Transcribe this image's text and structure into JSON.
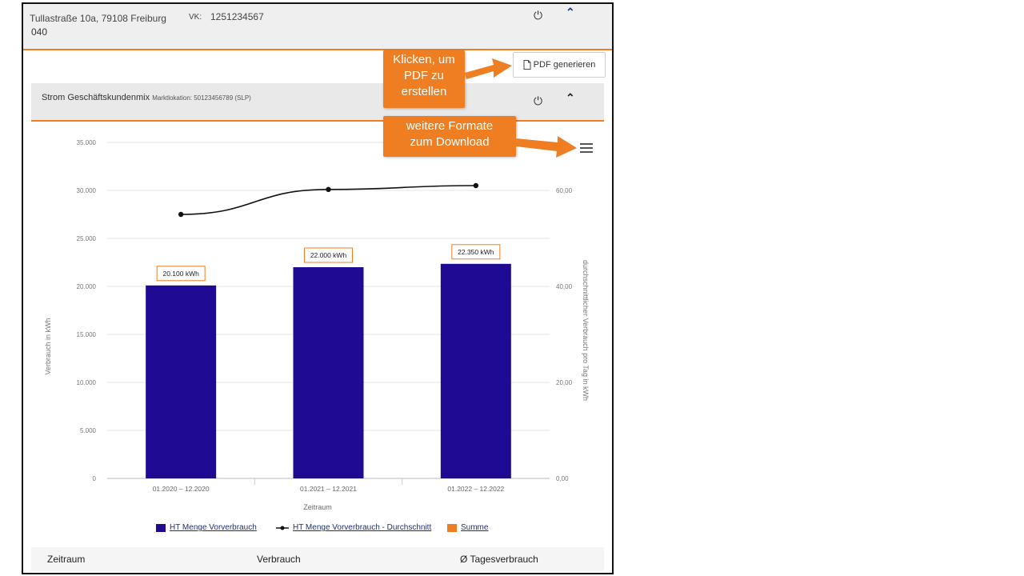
{
  "header": {
    "address": "Tullastraße 10a, 79108 Freiburg",
    "vk_label": "VK:",
    "vk_value": "1251234567",
    "code": "040"
  },
  "pdf_button": {
    "label": "PDF generieren",
    "icon": "document-icon"
  },
  "product": {
    "name": "Strom Geschäftskundenmix",
    "detail": "Marktlokation: 50123456789 (SLP)"
  },
  "callouts": {
    "pdf_lines": [
      "Klicken, um",
      "PDF zu",
      "erstellen"
    ],
    "formats_lines": [
      "weitere Formate",
      "zum Download"
    ]
  },
  "colors": {
    "accent": "#ef7d22",
    "bar": "#1f0a93",
    "line": "#111111",
    "link": "#1d2e7a"
  },
  "chart_data": {
    "type": "bar",
    "categories": [
      "01.2020 – 12.2020",
      "01.2021 – 12.2021",
      "01.2022 – 12.2022"
    ],
    "series": [
      {
        "name": "HT Menge Vorverbrauch",
        "type": "bar",
        "axis": "left",
        "values": [
          20100,
          22000,
          22350
        ]
      },
      {
        "name": "HT Menge Vorverbrauch - Durchschnitt",
        "type": "line",
        "axis": "right",
        "values": [
          55,
          60.2,
          61
        ]
      }
    ],
    "data_labels": [
      "20.100 kWh",
      "22.000 kWh",
      "22.350 kWh"
    ],
    "xlabel": "Zeitraum",
    "ylabel": "Verbrauch in kWh",
    "y2label": "durchschnittlicher Verbrauch pro Tag in kWh",
    "ylim": [
      0,
      35000
    ],
    "y2lim": [
      0,
      70
    ],
    "yticks": [
      "0",
      "5.000",
      "10.000",
      "15.000",
      "20.000",
      "25.000",
      "30.000",
      "35.000"
    ],
    "y2ticks": [
      "0,00",
      "20,00",
      "40,00",
      "60,00"
    ],
    "legend": [
      "HT Menge Vorverbrauch",
      "HT Menge Vorverbrauch - Durchschnitt",
      "Summe"
    ],
    "legend_placement": "bottom",
    "grid": true
  },
  "table": {
    "columns": [
      "Zeitraum",
      "Verbrauch",
      "Ø Tagesverbrauch"
    ]
  }
}
